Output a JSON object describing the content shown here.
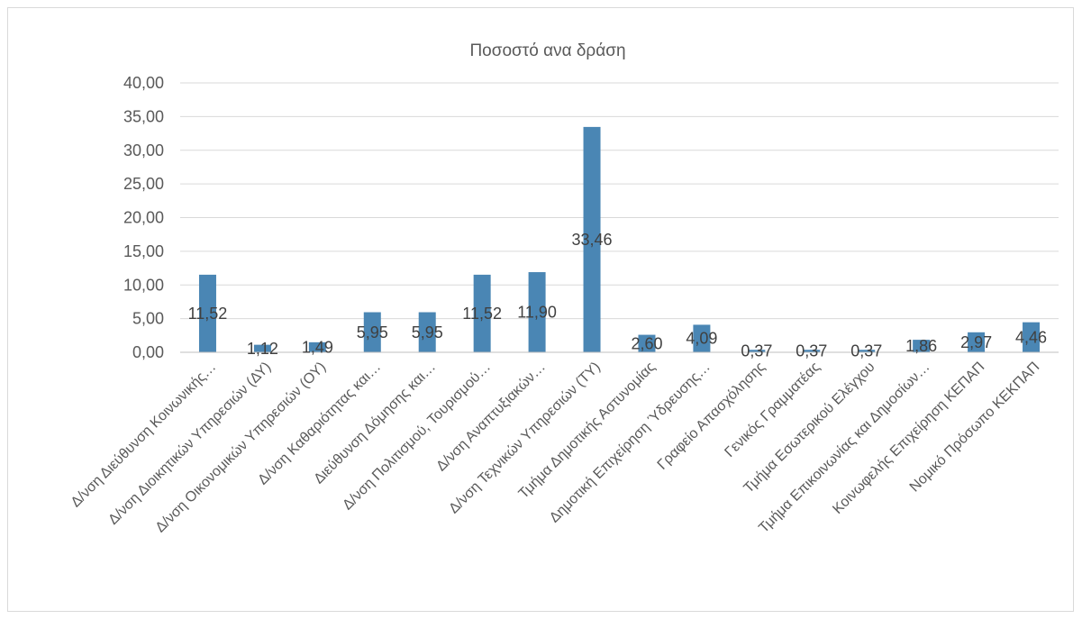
{
  "chart_data": {
    "type": "bar",
    "title": "Ποσοστό ανα δράση",
    "xlabel": "",
    "ylabel": "",
    "ylim": [
      0,
      40
    ],
    "yticks": [
      "0,00",
      "5,00",
      "10,00",
      "15,00",
      "20,00",
      "25,00",
      "30,00",
      "35,00",
      "40,00"
    ],
    "grid": true,
    "legend": "none",
    "bar_color": "#4a86b4",
    "categories": [
      "Δ/νση Διεύθυνση Κοινωνικής…",
      "Δ/νση Διοικητικών Υπηρεσιών  (ΔΥ)",
      "Δ/νση Οικονομικών Υπηρεσιών (ΟΥ)",
      "Δ/νση Καθαριότητας και…",
      "Διεύθυνση Δόμησης και…",
      "Δ/νση Πολιτισμού, Τουρισμού…",
      "Δ/νση Αναπτυξιακών…",
      "Δ/νση Τεχνικών Υπηρεσιών (ΤΥ)",
      "Τμήμα Δημοτικής Αστυνομίας",
      "Δημοτική Επιχείρηση Ύδρευσης…",
      "Γραφείο Απασχόλησης",
      "Γενικός Γραμματέας",
      "Τμήμα Εσωτερικού Ελέγχου",
      "Τμήμα Επικοινωνίας και Δημοσίων…",
      "Κοινωφελής Επιχείρηση ΚΕΠΑΠ",
      "Νομικό Πρόσωπο ΚΕΚΠΑΠ"
    ],
    "values": [
      11.52,
      1.12,
      1.49,
      5.95,
      5.95,
      11.52,
      11.9,
      33.46,
      2.6,
      4.09,
      0.37,
      0.37,
      0.37,
      1.86,
      2.97,
      4.46
    ],
    "data_labels": [
      "11,52",
      "1,12",
      "1,49",
      "5,95",
      "5,95",
      "11,52",
      "11,90",
      "33,46",
      "2,60",
      "4,09",
      "0,37",
      "0,37",
      "0,37",
      "1,86",
      "2,97",
      "4,46"
    ]
  }
}
